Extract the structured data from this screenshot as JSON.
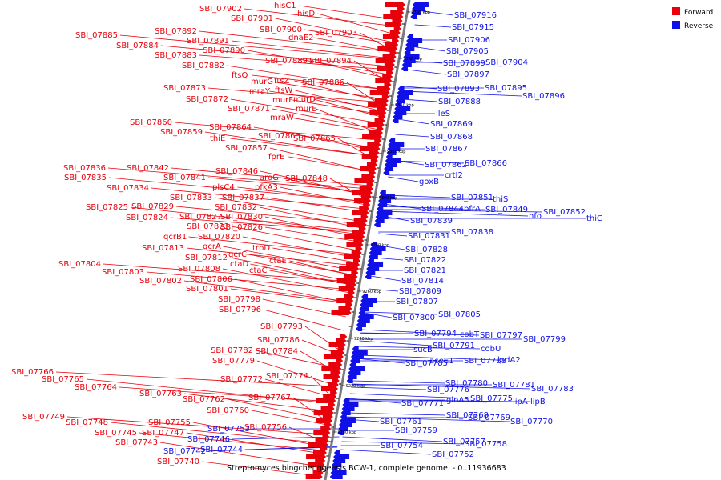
{
  "colors": {
    "forward": "#e8000b",
    "reverse": "#1010e8",
    "backbone": "#7a7a7a"
  },
  "legend": {
    "forward": "Forward",
    "reverse": "Reverse"
  },
  "caption": "Streptomyces bingchenggensis BCW-1, complete genome. - 0..11936683",
  "ticks": [
    "9380 kbp",
    "9360 kbp",
    "9340 kbp",
    "9320 kbp",
    "9300 kbp",
    "9280 kbp",
    "9260 kbp",
    "9240 kbp",
    "9220 kbp",
    "9200 kbp"
  ],
  "forward_labels": [
    "hisC1",
    "SBI_07902",
    "hisD",
    "SBI_07901",
    "SBI_07900",
    "SBI_07903",
    "SBI_07892",
    "SBI_07885",
    "dnaE2",
    "SBI_07891",
    "SBI_07884",
    "SBI_07890",
    "SBI_07883",
    "SBI_07889",
    "SBI_07894",
    "SBI_07882",
    "ftsQ",
    "murG",
    "ftsZ",
    "SBI_07886",
    "SBI_07873",
    "mraY",
    "ftsW",
    "SBI_07872",
    "murF",
    "murD",
    "SBI_07871",
    "murE",
    "mraW",
    "SBI_07860",
    "SBI_07864",
    "SBI_07859",
    "SBI_07863",
    "thiE",
    "SBI_07865",
    "SBI_07857",
    "fprE",
    "SBI_07842",
    "SBI_07836",
    "SBI_07846",
    "SBI_07841",
    "aroG",
    "SBI_07848",
    "SBI_07835",
    "plsC4",
    "pfkA3",
    "SBI_07834",
    "SBI_07833",
    "SBI_07837",
    "SBI_07829",
    "SBI_07832",
    "SBI_07825",
    "SBI_07824",
    "SBI_07827",
    "SBI_07830",
    "SBI_07823",
    "SBI_07826",
    "qcrB1",
    "SBI_07820",
    "qcrA",
    "trpD",
    "SBI_07813",
    "qcrC",
    "SBI_07812",
    "ctaE",
    "SBI_07804",
    "ctaD",
    "SBI_07808",
    "ctaC",
    "SBI_07803",
    "SBI_07802",
    "SBI_07806",
    "SBI_07801",
    "SBI_07798",
    "SBI_07796",
    "SBI_07793",
    "SBI_07786",
    "SBI_07782",
    "SBI_07784",
    "SBI_07779",
    "SBI_07766",
    "SBI_07772",
    "SBI_07774",
    "SBI_07765",
    "SBI_07764",
    "SBI_07763",
    "SBI_07762",
    "SBI_07767",
    "SBI_07760",
    "SBI_07749",
    "SBI_07748",
    "SBI_07755",
    "SBI_07756",
    "SBI_07745",
    "SBI_07747",
    "SBI_07743",
    "SBI_07740"
  ],
  "reverse_labels": [
    "SBI_07916",
    "SBI_07915",
    "SBI_07906",
    "SBI_07905",
    "SBI_07899",
    "SBI_07904",
    "SBI_07897",
    "SBI_07893",
    "SBI_07895",
    "SBI_07896",
    "SBI_07888",
    "ileS",
    "SBI_07869",
    "SBI_07868",
    "SBI_07867",
    "SBI_07862",
    "SBI_07866",
    "crtI2",
    "goxB",
    "SBI_07851",
    "thiS",
    "SBI_07844",
    "bfrA",
    "SBI_07849",
    "nfo",
    "SBI_07852",
    "thiG",
    "SBI_07839",
    "SBI_07831",
    "SBI_07838",
    "SBI_07828",
    "SBI_07822",
    "SBI_07821",
    "SBI_07814",
    "SBI_07809",
    "SBI_07807",
    "SBI_07800",
    "SBI_07805",
    "SBI_07794",
    "cobT",
    "SBI_07797",
    "SBI_07799",
    "SBI_07791",
    "cobU",
    "sucB",
    "SBI_07785",
    "aceE1",
    "SBI_07788",
    "lpdA2",
    "SBI_07780",
    "SBI_07781",
    "SBI_07783",
    "SBI_07776",
    "glnA5",
    "SBI_07775",
    "lipA",
    "lipB",
    "SBI_07771",
    "SBI_07768",
    "SBI_07769",
    "SBI_07770",
    "SBI_07761",
    "SBI_07759",
    "SBI_07757",
    "SBI_07758",
    "SBI_07754",
    "SBI_07752",
    "SBI_07746",
    "SBI_07753",
    "SBI_07742",
    "SBI_07744"
  ]
}
